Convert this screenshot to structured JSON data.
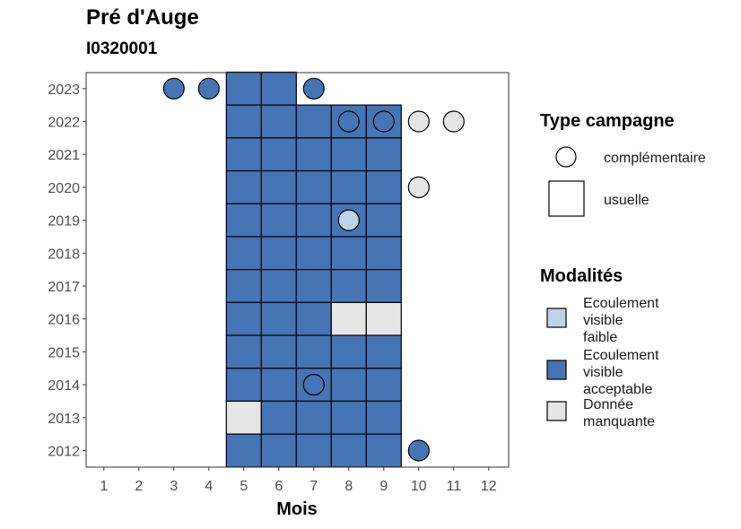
{
  "title": "Pré d'Auge",
  "subtitle": "I0320001",
  "chart_data": {
    "type": "heatmap",
    "xlabel": "Mois",
    "ylabel": "",
    "x_ticks": [
      "1",
      "2",
      "3",
      "4",
      "5",
      "6",
      "7",
      "8",
      "9",
      "10",
      "11",
      "12"
    ],
    "y_ticks": [
      "2012",
      "2013",
      "2014",
      "2015",
      "2016",
      "2017",
      "2018",
      "2019",
      "2020",
      "2021",
      "2022",
      "2023"
    ],
    "xlim": [
      1,
      12
    ],
    "ylim": [
      2012,
      2023
    ],
    "grid": false,
    "legend_position": "right",
    "colors": {
      "Ecoulement visible faible": "#bdd3e6",
      "Ecoulement visible acceptable": "#4575b4",
      "Donnée manquante": "#e5e5e5"
    },
    "usuelle": [
      {
        "year": 2023,
        "month": 5,
        "value": "Ecoulement visible acceptable"
      },
      {
        "year": 2023,
        "month": 6,
        "value": "Ecoulement visible acceptable"
      },
      {
        "year": 2022,
        "month": 5,
        "value": "Ecoulement visible acceptable"
      },
      {
        "year": 2022,
        "month": 6,
        "value": "Ecoulement visible acceptable"
      },
      {
        "year": 2022,
        "month": 7,
        "value": "Ecoulement visible acceptable"
      },
      {
        "year": 2022,
        "month": 8,
        "value": "Ecoulement visible acceptable"
      },
      {
        "year": 2022,
        "month": 9,
        "value": "Ecoulement visible acceptable"
      },
      {
        "year": 2021,
        "month": 5,
        "value": "Ecoulement visible acceptable"
      },
      {
        "year": 2021,
        "month": 6,
        "value": "Ecoulement visible acceptable"
      },
      {
        "year": 2021,
        "month": 7,
        "value": "Ecoulement visible acceptable"
      },
      {
        "year": 2021,
        "month": 8,
        "value": "Ecoulement visible acceptable"
      },
      {
        "year": 2021,
        "month": 9,
        "value": "Ecoulement visible acceptable"
      },
      {
        "year": 2020,
        "month": 5,
        "value": "Ecoulement visible acceptable"
      },
      {
        "year": 2020,
        "month": 6,
        "value": "Ecoulement visible acceptable"
      },
      {
        "year": 2020,
        "month": 7,
        "value": "Ecoulement visible acceptable"
      },
      {
        "year": 2020,
        "month": 8,
        "value": "Ecoulement visible acceptable"
      },
      {
        "year": 2020,
        "month": 9,
        "value": "Ecoulement visible acceptable"
      },
      {
        "year": 2019,
        "month": 5,
        "value": "Ecoulement visible acceptable"
      },
      {
        "year": 2019,
        "month": 6,
        "value": "Ecoulement visible acceptable"
      },
      {
        "year": 2019,
        "month": 7,
        "value": "Ecoulement visible acceptable"
      },
      {
        "year": 2019,
        "month": 8,
        "value": "Ecoulement visible acceptable"
      },
      {
        "year": 2019,
        "month": 9,
        "value": "Ecoulement visible acceptable"
      },
      {
        "year": 2018,
        "month": 5,
        "value": "Ecoulement visible acceptable"
      },
      {
        "year": 2018,
        "month": 6,
        "value": "Ecoulement visible acceptable"
      },
      {
        "year": 2018,
        "month": 7,
        "value": "Ecoulement visible acceptable"
      },
      {
        "year": 2018,
        "month": 8,
        "value": "Ecoulement visible acceptable"
      },
      {
        "year": 2018,
        "month": 9,
        "value": "Ecoulement visible acceptable"
      },
      {
        "year": 2017,
        "month": 5,
        "value": "Ecoulement visible acceptable"
      },
      {
        "year": 2017,
        "month": 6,
        "value": "Ecoulement visible acceptable"
      },
      {
        "year": 2017,
        "month": 7,
        "value": "Ecoulement visible acceptable"
      },
      {
        "year": 2017,
        "month": 8,
        "value": "Ecoulement visible acceptable"
      },
      {
        "year": 2017,
        "month": 9,
        "value": "Ecoulement visible acceptable"
      },
      {
        "year": 2016,
        "month": 5,
        "value": "Ecoulement visible acceptable"
      },
      {
        "year": 2016,
        "month": 6,
        "value": "Ecoulement visible acceptable"
      },
      {
        "year": 2016,
        "month": 7,
        "value": "Ecoulement visible acceptable"
      },
      {
        "year": 2016,
        "month": 8,
        "value": "Donnée manquante"
      },
      {
        "year": 2016,
        "month": 9,
        "value": "Donnée manquante"
      },
      {
        "year": 2015,
        "month": 5,
        "value": "Ecoulement visible acceptable"
      },
      {
        "year": 2015,
        "month": 6,
        "value": "Ecoulement visible acceptable"
      },
      {
        "year": 2015,
        "month": 7,
        "value": "Ecoulement visible acceptable"
      },
      {
        "year": 2015,
        "month": 8,
        "value": "Ecoulement visible acceptable"
      },
      {
        "year": 2015,
        "month": 9,
        "value": "Ecoulement visible acceptable"
      },
      {
        "year": 2014,
        "month": 5,
        "value": "Ecoulement visible acceptable"
      },
      {
        "year": 2014,
        "month": 6,
        "value": "Ecoulement visible acceptable"
      },
      {
        "year": 2014,
        "month": 7,
        "value": "Ecoulement visible acceptable"
      },
      {
        "year": 2014,
        "month": 8,
        "value": "Ecoulement visible acceptable"
      },
      {
        "year": 2014,
        "month": 9,
        "value": "Ecoulement visible acceptable"
      },
      {
        "year": 2013,
        "month": 5,
        "value": "Donnée manquante"
      },
      {
        "year": 2013,
        "month": 6,
        "value": "Ecoulement visible acceptable"
      },
      {
        "year": 2013,
        "month": 7,
        "value": "Ecoulement visible acceptable"
      },
      {
        "year": 2013,
        "month": 8,
        "value": "Ecoulement visible acceptable"
      },
      {
        "year": 2013,
        "month": 9,
        "value": "Ecoulement visible acceptable"
      },
      {
        "year": 2012,
        "month": 5,
        "value": "Ecoulement visible acceptable"
      },
      {
        "year": 2012,
        "month": 6,
        "value": "Ecoulement visible acceptable"
      },
      {
        "year": 2012,
        "month": 7,
        "value": "Ecoulement visible acceptable"
      },
      {
        "year": 2012,
        "month": 8,
        "value": "Ecoulement visible acceptable"
      },
      {
        "year": 2012,
        "month": 9,
        "value": "Ecoulement visible acceptable"
      }
    ],
    "complementaire": [
      {
        "year": 2023,
        "month": 3,
        "value": "Ecoulement visible acceptable"
      },
      {
        "year": 2023,
        "month": 4,
        "value": "Ecoulement visible acceptable"
      },
      {
        "year": 2023,
        "month": 7,
        "value": "Ecoulement visible acceptable"
      },
      {
        "year": 2022,
        "month": 8,
        "value": "Ecoulement visible acceptable"
      },
      {
        "year": 2022,
        "month": 9,
        "value": "Ecoulement visible acceptable"
      },
      {
        "year": 2022,
        "month": 10,
        "value": "Donnée manquante"
      },
      {
        "year": 2022,
        "month": 11,
        "value": "Donnée manquante"
      },
      {
        "year": 2020,
        "month": 10,
        "value": "Donnée manquante"
      },
      {
        "year": 2019,
        "month": 8,
        "value": "Ecoulement visible faible"
      },
      {
        "year": 2014,
        "month": 7,
        "value": "Ecoulement visible acceptable"
      },
      {
        "year": 2012,
        "month": 10,
        "value": "Ecoulement visible acceptable"
      }
    ]
  },
  "legend": {
    "type_title": "Type campagne",
    "type_items": [
      "complémentaire",
      "usuelle"
    ],
    "modalites_title": "Modalités",
    "modalites_items": [
      {
        "label_lines": [
          "Ecoulement",
          "visible",
          "faible"
        ],
        "color": "#bdd3e6"
      },
      {
        "label_lines": [
          "Ecoulement",
          "visible",
          "acceptable"
        ],
        "color": "#4575b4"
      },
      {
        "label_lines": [
          "Donnée",
          "manquante"
        ],
        "color": "#e5e5e5"
      }
    ]
  }
}
